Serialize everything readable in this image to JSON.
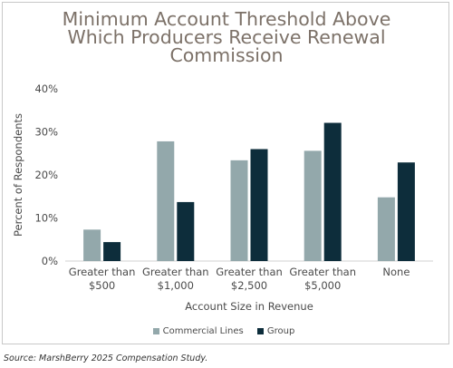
{
  "chart_data": {
    "type": "bar",
    "title_lines": [
      "Minimum Account Threshold Above",
      "Which Producers Receive Renewal",
      "Commission"
    ],
    "xlabel": "Account Size in Revenue",
    "ylabel": "Percent of Respondents",
    "ylim": [
      0,
      40
    ],
    "yticks": [
      "0%",
      "10%",
      "20%",
      "30%",
      "40%"
    ],
    "categories": [
      [
        "Greater than",
        "$500"
      ],
      [
        "Greater than",
        "$1,000"
      ],
      [
        "Greater than",
        "$2,500"
      ],
      [
        "Greater than",
        "$5,000"
      ],
      [
        "None"
      ]
    ],
    "series": [
      {
        "name": "Commercial Lines",
        "color": "#93a8ab",
        "values": [
          7.3,
          27.8,
          23.4,
          25.6,
          14.8
        ]
      },
      {
        "name": "Group",
        "color": "#0d2d3b",
        "values": [
          4.4,
          13.7,
          26.0,
          32.1,
          22.9
        ]
      }
    ],
    "grid": false,
    "legend_position": "bottom"
  },
  "source": "Source: MarshBerry 2025 Compensation Study."
}
